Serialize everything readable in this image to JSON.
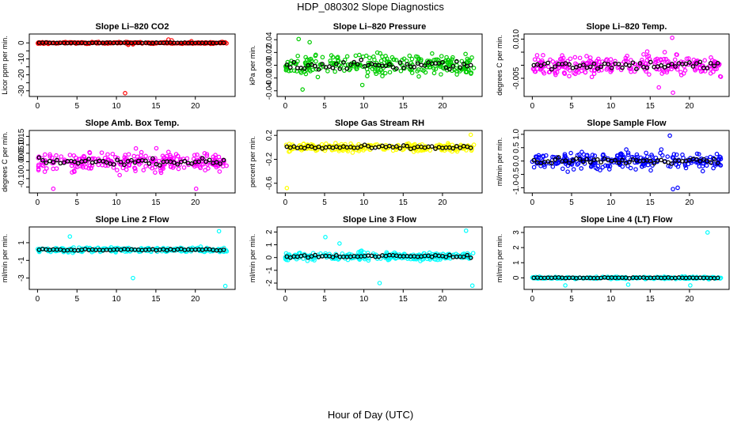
{
  "title": "HDP_080302  Slope Diagnostics",
  "xlabel": "Hour of Day (UTC)",
  "chart_data": [
    {
      "type": "scatter",
      "title": "Slope Li–820 CO2",
      "ylabel": "Licor ppm per min.",
      "xlim": [
        0,
        24
      ],
      "xticks": [
        0,
        5,
        10,
        15,
        20
      ],
      "ylim": [
        -32,
        4
      ],
      "yticks": [
        0,
        -5,
        -10,
        -15,
        -20,
        -25,
        -30
      ],
      "yticklabels": [
        "0",
        "",
        "-10",
        "",
        "-20",
        "",
        "-30"
      ],
      "color": "#ff0000",
      "base": 0,
      "spread": 0.5,
      "highlight_spread": 0.2,
      "outliers": [
        [
          11.1,
          -31.5
        ],
        [
          11.5,
          -1.2
        ],
        [
          12.1,
          -0.9
        ],
        [
          16.6,
          2.1
        ],
        [
          17.0,
          1.6
        ],
        [
          19.5,
          1.0
        ]
      ]
    },
    {
      "type": "scatter",
      "title": "Slope Li–820 Pressure",
      "ylabel": "kPa per min.",
      "xlim": [
        0,
        24
      ],
      "xticks": [
        0,
        5,
        10,
        15,
        20
      ],
      "ylim": [
        -0.045,
        0.045
      ],
      "yticks": [
        -0.04,
        -0.02,
        0,
        0.02,
        0.04
      ],
      "yticklabels": [
        "-0.04",
        "-0.02",
        "0.00",
        "0.02",
        "0.04"
      ],
      "color": "#00cc00",
      "base": 0,
      "spread": 0.016,
      "highlight_spread": 0.008,
      "outliers": [
        [
          1.7,
          0.041
        ],
        [
          2.2,
          -0.038
        ],
        [
          3.1,
          0.036
        ],
        [
          9.8,
          -0.031
        ]
      ]
    },
    {
      "type": "scatter",
      "title": "Slope Li–820 Temp.",
      "ylabel": "degrees C per min.",
      "xlim": [
        0,
        24
      ],
      "xticks": [
        0,
        5,
        10,
        15,
        20
      ],
      "ylim": [
        -0.011,
        0.011
      ],
      "yticks": [
        -0.005,
        0,
        0.005,
        0.01
      ],
      "yticklabels": [
        "-0.005",
        "",
        "",
        "0.010"
      ],
      "color": "#ff00ff",
      "base": 0,
      "spread": 0.0035,
      "highlight_spread": 0.002,
      "outliers": [
        [
          17.8,
          0.0105
        ],
        [
          17.9,
          -0.0105
        ],
        [
          16.1,
          -0.0085
        ]
      ]
    },
    {
      "type": "scatter",
      "title": "Slope Amb. Box Temp.",
      "ylabel": "degrees C per min.",
      "xlim": [
        0,
        24
      ],
      "xticks": [
        0,
        5,
        10,
        15,
        20
      ],
      "ylim": [
        -0.17,
        0.17
      ],
      "yticks": [
        -0.15,
        -0.1,
        -0.05,
        0,
        0.05,
        0.1,
        0.15
      ],
      "yticklabels": [
        "",
        "-0.10",
        "",
        "0.00",
        "0.05",
        "0.10",
        "0.15"
      ],
      "color": "#ff00ff",
      "base": 0,
      "spread": 0.06,
      "highlight_spread": 0.02,
      "outliers": [
        [
          2.0,
          -0.16
        ],
        [
          20.1,
          -0.16
        ]
      ]
    },
    {
      "type": "scatter",
      "title": "Slope Gas Stream RH",
      "ylabel": "percent per min.",
      "xlim": [
        0,
        24
      ],
      "xticks": [
        0,
        5,
        10,
        15,
        20
      ],
      "ylim": [
        -0.72,
        0.24
      ],
      "yticks": [
        0.2,
        -0.2,
        -0.6
      ],
      "yticklabels": [
        "0.2",
        "-0.2",
        "-0.6"
      ],
      "color": "#ffff00",
      "base": 0,
      "spread": 0.06,
      "highlight_spread": 0.04,
      "outliers": [
        [
          0.2,
          -0.68
        ],
        [
          23.6,
          0.21
        ]
      ]
    },
    {
      "type": "scatter",
      "title": "Slope Sample Flow",
      "ylabel": "ml/min per min.",
      "xlim": [
        0,
        24
      ],
      "xticks": [
        0,
        5,
        10,
        15,
        20
      ],
      "ylim": [
        -1.1,
        1.05
      ],
      "yticks": [
        1,
        0.5,
        0,
        -0.5,
        -1
      ],
      "yticklabels": [
        "1.0",
        "0.5",
        "0.0",
        "-0.5",
        "-1.0"
      ],
      "color": "#0000ff",
      "base": 0,
      "spread": 0.3,
      "highlight_spread": 0.15,
      "outliers": [
        [
          17.9,
          -1.05
        ],
        [
          18.5,
          -1.0
        ],
        [
          17.5,
          0.95
        ]
      ]
    },
    {
      "type": "scatter",
      "title": "Slope Line 2 Flow",
      "ylabel": "ml/min per min.",
      "xlim": [
        0,
        24
      ],
      "xticks": [
        0,
        5,
        10,
        15,
        20
      ],
      "ylim": [
        -4,
        2.5
      ],
      "yticks": [
        1,
        -1,
        -3
      ],
      "yticklabels": [
        "1",
        "-1",
        "-3"
      ],
      "color": "#00ffff",
      "base": 0.2,
      "spread": 0.25,
      "highlight_spread": 0.1,
      "outliers": [
        [
          4.1,
          1.7
        ],
        [
          12.1,
          -3.0
        ],
        [
          23.0,
          2.3
        ],
        [
          23.8,
          -3.9
        ]
      ]
    },
    {
      "type": "scatter",
      "title": "Slope Line 3 Flow",
      "ylabel": "ml/min per min.",
      "xlim": [
        0,
        24
      ],
      "xticks": [
        0,
        5,
        10,
        15,
        20
      ],
      "ylim": [
        -2.3,
        2.2
      ],
      "yticks": [
        2,
        1,
        0,
        -1,
        -2
      ],
      "yticklabels": [
        "2",
        "1",
        "0",
        "-1",
        "-2"
      ],
      "color": "#00ffff",
      "base": 0.1,
      "spread": 0.3,
      "highlight_spread": 0.15,
      "outliers": [
        [
          5.1,
          1.6
        ],
        [
          6.9,
          1.1
        ],
        [
          12.0,
          -2.0
        ],
        [
          23.0,
          2.1
        ],
        [
          23.8,
          -2.2
        ]
      ]
    },
    {
      "type": "scatter",
      "title": "Slope Line 4 (LT) Flow",
      "ylabel": "ml/min per min.",
      "xlim": [
        0,
        24
      ],
      "xticks": [
        0,
        5,
        10,
        15,
        20
      ],
      "ylim": [
        -0.6,
        3.2
      ],
      "yticks": [
        0,
        1,
        2,
        3
      ],
      "yticklabels": [
        "0",
        "1",
        "2",
        "3"
      ],
      "color": "#00ffff",
      "base": 0,
      "spread": 0.06,
      "highlight_spread": 0.03,
      "outliers": [
        [
          4.2,
          -0.5
        ],
        [
          12.2,
          -0.45
        ],
        [
          20.1,
          -0.5
        ],
        [
          22.3,
          3.0
        ]
      ]
    }
  ]
}
